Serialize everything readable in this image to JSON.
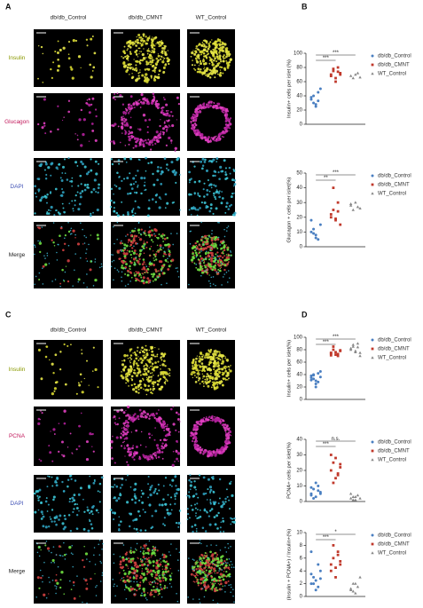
{
  "figure": {
    "labels": [
      "A",
      "B",
      "C",
      "D"
    ]
  },
  "panels": {
    "A": {
      "columns": [
        "db/db_Control",
        "db/db_CMNT",
        "WT_Control"
      ],
      "rows": [
        "Insulin",
        "Glucagon",
        "DAPI",
        "Merge"
      ]
    },
    "C": {
      "columns": [
        "db/db_Control",
        "db/db_CMNT",
        "WT_Control"
      ],
      "rows": [
        "Insulin",
        "PCNA",
        "DAPI",
        "Merge"
      ]
    }
  },
  "chart_data": [
    {
      "type": "scatter",
      "ylabel": "Insulin+ cells per islet (%)",
      "ylim": [
        0,
        100
      ],
      "yticks": [
        0,
        20,
        40,
        60,
        80,
        100
      ],
      "annotations": [
        "***",
        "***"
      ],
      "series": [
        {
          "name": "db/db_Control",
          "color": "#4a7fc1",
          "marker": "circle",
          "values": [
            35,
            40,
            28,
            45,
            50,
            38,
            30,
            25,
            33
          ]
        },
        {
          "name": "db/db_CMNT",
          "color": "#c0392b",
          "marker": "square",
          "values": [
            70,
            75,
            65,
            80,
            72,
            68,
            78,
            60,
            74,
            70
          ]
        },
        {
          "name": "WT_Control",
          "color": "#888888",
          "marker": "triangle",
          "values": [
            68,
            65,
            70,
            72,
            66
          ]
        }
      ]
    },
    {
      "type": "scatter",
      "ylabel": "Glucagon + cells per islet(%)",
      "ylim": [
        0,
        50
      ],
      "yticks": [
        0,
        10,
        20,
        30,
        40,
        50
      ],
      "annotations": [
        "**",
        "***"
      ],
      "series": [
        {
          "name": "db/db_Control",
          "color": "#4a7fc1",
          "marker": "circle",
          "values": [
            10,
            12,
            8,
            5,
            15,
            18,
            9,
            6
          ]
        },
        {
          "name": "db/db_CMNT",
          "color": "#c0392b",
          "marker": "square",
          "values": [
            20,
            25,
            18,
            30,
            15,
            22,
            40,
            19,
            24
          ]
        },
        {
          "name": "WT_Control",
          "color": "#888888",
          "marker": "triangle",
          "values": [
            28,
            25,
            30,
            27,
            26,
            29
          ]
        }
      ]
    },
    {
      "type": "scatter",
      "ylabel": "Insulin+ cells per islet(%)",
      "ylim": [
        0,
        100
      ],
      "yticks": [
        0,
        20,
        40,
        60,
        80,
        100
      ],
      "annotations": [
        "***",
        "***"
      ],
      "series": [
        {
          "name": "db/db_Control",
          "color": "#4a7fc1",
          "marker": "circle",
          "values": [
            35,
            40,
            30,
            28,
            45,
            38,
            33,
            25,
            42,
            36,
            31,
            39,
            20
          ]
        },
        {
          "name": "db/db_CMNT",
          "color": "#c0392b",
          "marker": "square",
          "values": [
            75,
            80,
            72,
            70,
            78,
            74,
            85,
            76,
            73,
            79,
            71
          ]
        },
        {
          "name": "WT_Control",
          "color": "#888888",
          "marker": "triangle",
          "values": [
            80,
            85,
            78,
            90,
            75,
            82,
            88,
            76,
            84,
            70
          ]
        }
      ]
    },
    {
      "type": "scatter",
      "ylabel": "PCNA+ cells per islet(%)",
      "ylim": [
        0,
        40
      ],
      "yticks": [
        0,
        10,
        20,
        30,
        40
      ],
      "annotations": [
        "***",
        "n.s."
      ],
      "series": [
        {
          "name": "db/db_Control",
          "color": "#4a7fc1",
          "marker": "circle",
          "values": [
            5,
            8,
            3,
            10,
            6,
            4,
            2,
            12,
            7,
            5,
            9
          ]
        },
        {
          "name": "db/db_CMNT",
          "color": "#c0392b",
          "marker": "square",
          "values": [
            20,
            25,
            15,
            18,
            22,
            30,
            12,
            28,
            17,
            24
          ]
        },
        {
          "name": "WT_Control",
          "color": "#888888",
          "marker": "triangle",
          "values": [
            2,
            3,
            1,
            4,
            2,
            5,
            1,
            3
          ]
        }
      ]
    },
    {
      "type": "scatter",
      "ylabel": "(Insulin + PCNA+) / Insulin+(%)",
      "ylim": [
        0,
        10
      ],
      "yticks": [
        0,
        2,
        4,
        6,
        8,
        10
      ],
      "annotations": [
        "***",
        "*"
      ],
      "series": [
        {
          "name": "db/db_Control",
          "color": "#4a7fc1",
          "marker": "circle",
          "values": [
            2,
            3,
            2.5,
            1.5,
            4,
            3.5,
            2,
            1,
            5,
            2.8,
            7
          ]
        },
        {
          "name": "db/db_CMNT",
          "color": "#c0392b",
          "marker": "square",
          "values": [
            5,
            6,
            4.5,
            7,
            5.5,
            4,
            8,
            3,
            6.5,
            5
          ]
        },
        {
          "name": "WT_Control",
          "color": "#888888",
          "marker": "triangle",
          "values": [
            1,
            2,
            0.5,
            1.5,
            3,
            1.2,
            0.8,
            2
          ]
        }
      ]
    }
  ]
}
